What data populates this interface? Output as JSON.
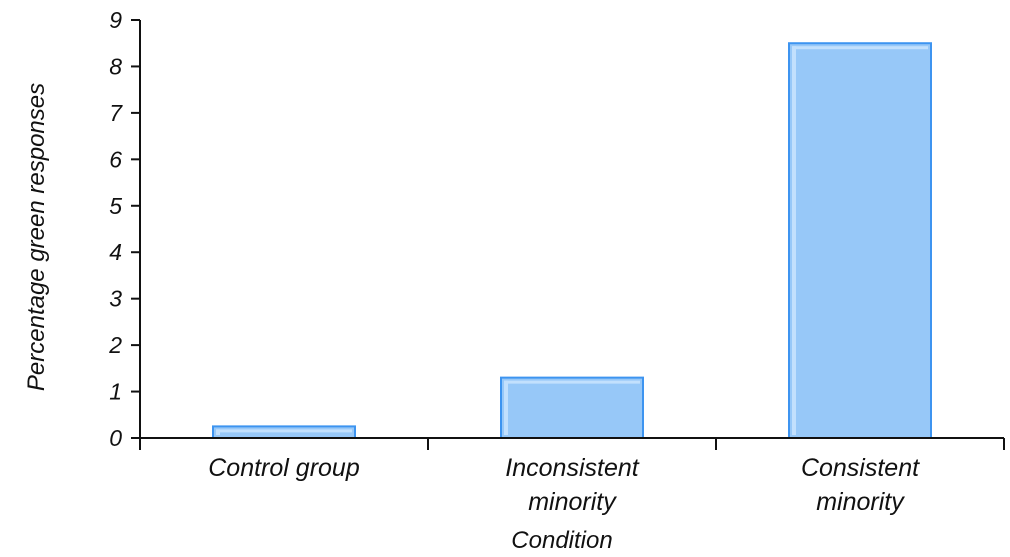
{
  "chart_data": {
    "type": "bar",
    "categories": [
      [
        "Control group"
      ],
      [
        "Inconsistent",
        "minority"
      ],
      [
        "Consistent",
        "minority"
      ]
    ],
    "values": [
      0.25,
      1.3,
      8.5
    ],
    "xlabel": "Condition",
    "ylabel": "Percentage green responses",
    "ylim": [
      0,
      9
    ],
    "yticks": [
      0,
      1,
      2,
      3,
      4,
      5,
      6,
      7,
      8,
      9
    ],
    "grid": false,
    "legend": "none",
    "bar_fill": "#97c8f8",
    "bar_stroke": "#3d94f0"
  }
}
